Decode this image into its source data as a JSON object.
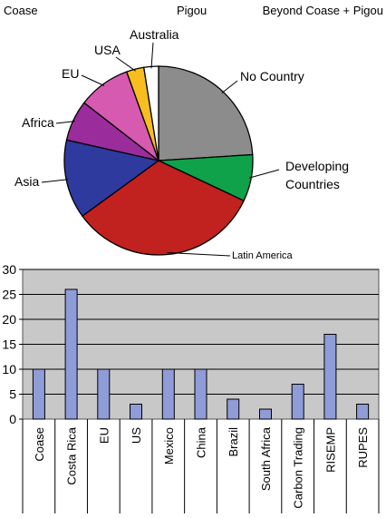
{
  "header": {
    "left": "Coase",
    "middle": "Pigou",
    "right": "Beyond Coase + Pigou"
  },
  "chart_data": [
    {
      "type": "pie",
      "title": "",
      "slices": [
        {
          "label": "No Country",
          "value": 24,
          "color": "#8c8c8c"
        },
        {
          "label": "Developing Countries",
          "value": 8,
          "color": "#0fa24a"
        },
        {
          "label": "Latin America",
          "value": 33,
          "color": "#c1211f"
        },
        {
          "label": "Asia",
          "value": 13.5,
          "color": "#2e3a9e"
        },
        {
          "label": "Africa",
          "value": 7,
          "color": "#9b2c9b"
        },
        {
          "label": "EU",
          "value": 9,
          "color": "#d65ab0"
        },
        {
          "label": "USA",
          "value": 3,
          "color": "#f7be1e"
        },
        {
          "label": "Australia",
          "value": 2.5,
          "color": "#ffffff"
        }
      ],
      "start_angle_deg": 0,
      "direction": "clockwise"
    },
    {
      "type": "bar",
      "title": "",
      "categories": [
        "Coase",
        "Costa Rica",
        "EU",
        "US",
        "Mexico",
        "China",
        "Brazil",
        "South Africa",
        "Carbon Trading",
        "RISEMP",
        "RUPES"
      ],
      "values": [
        10,
        26,
        10,
        3,
        10,
        10,
        4,
        2,
        7,
        17,
        3
      ],
      "xlabel": "",
      "ylabel": "",
      "ylim": [
        0,
        30
      ],
      "yticks": [
        "0",
        "5",
        "10",
        "15",
        "20",
        "25",
        "30"
      ],
      "grid": true,
      "plot_background": "#c8c8c8",
      "bar_color": "#8f9cd8"
    }
  ]
}
